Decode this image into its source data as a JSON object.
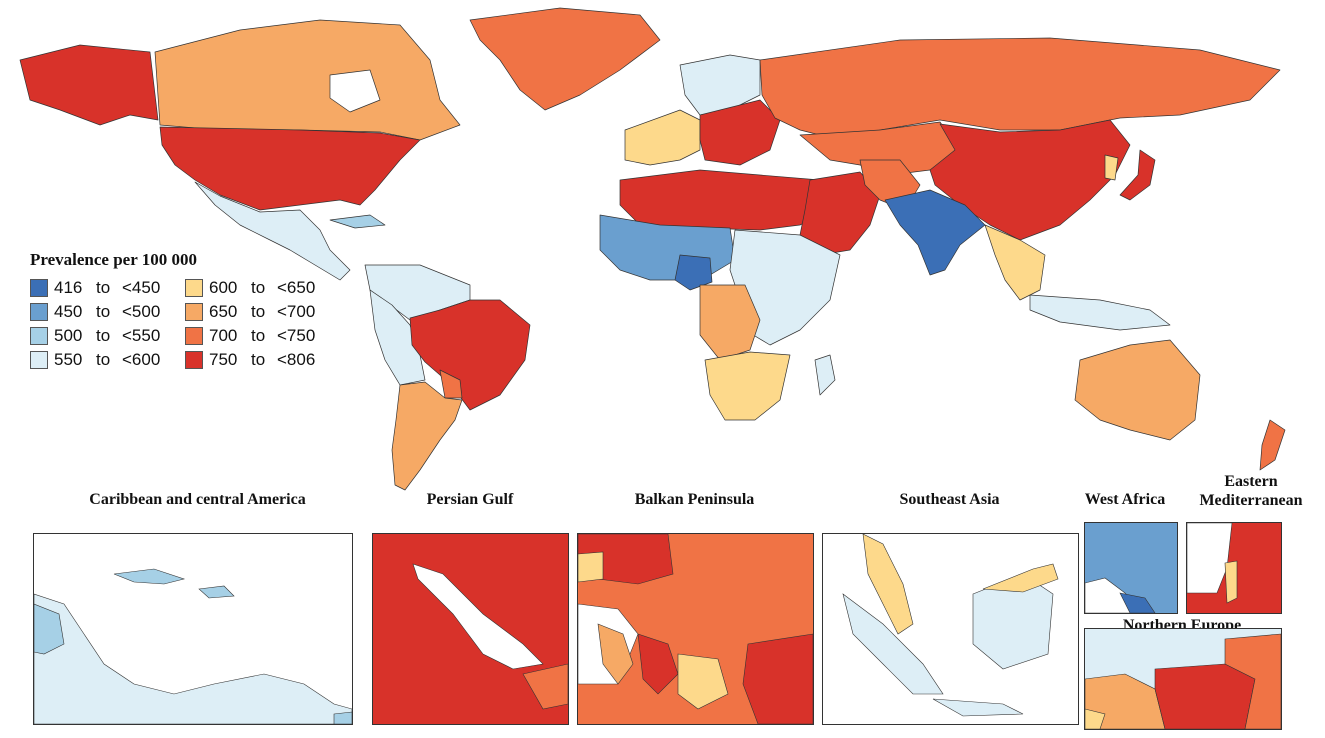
{
  "legend": {
    "title": "Prevalence per 100 000",
    "items": [
      {
        "from": "416",
        "sep": "to",
        "to": "<450",
        "color": "#3b6fb6"
      },
      {
        "from": "600",
        "sep": "to",
        "to": "<650",
        "color": "#fdd98b"
      },
      {
        "from": "450",
        "sep": "to",
        "to": "<500",
        "color": "#6a9fcf"
      },
      {
        "from": "650",
        "sep": "to",
        "to": "<700",
        "color": "#f6a965"
      },
      {
        "from": "500",
        "sep": "to",
        "to": "<550",
        "color": "#a6d0e6"
      },
      {
        "from": "700",
        "sep": "to",
        "to": "<750",
        "color": "#f07345"
      },
      {
        "from": "550",
        "sep": "to",
        "to": "<600",
        "color": "#ddeef6"
      },
      {
        "from": "750",
        "sep": "to",
        "to": "<806",
        "color": "#d8322a"
      }
    ]
  },
  "insets": {
    "caribbean": "Caribbean and central America",
    "persian_gulf": "Persian Gulf",
    "balkan": "Balkan Peninsula",
    "southeast_asia": "Southeast Asia",
    "west_africa": "West Africa",
    "east_med_1": "Eastern",
    "east_med_2": "Mediterranean",
    "northern_europe": "Northern Europe"
  }
}
